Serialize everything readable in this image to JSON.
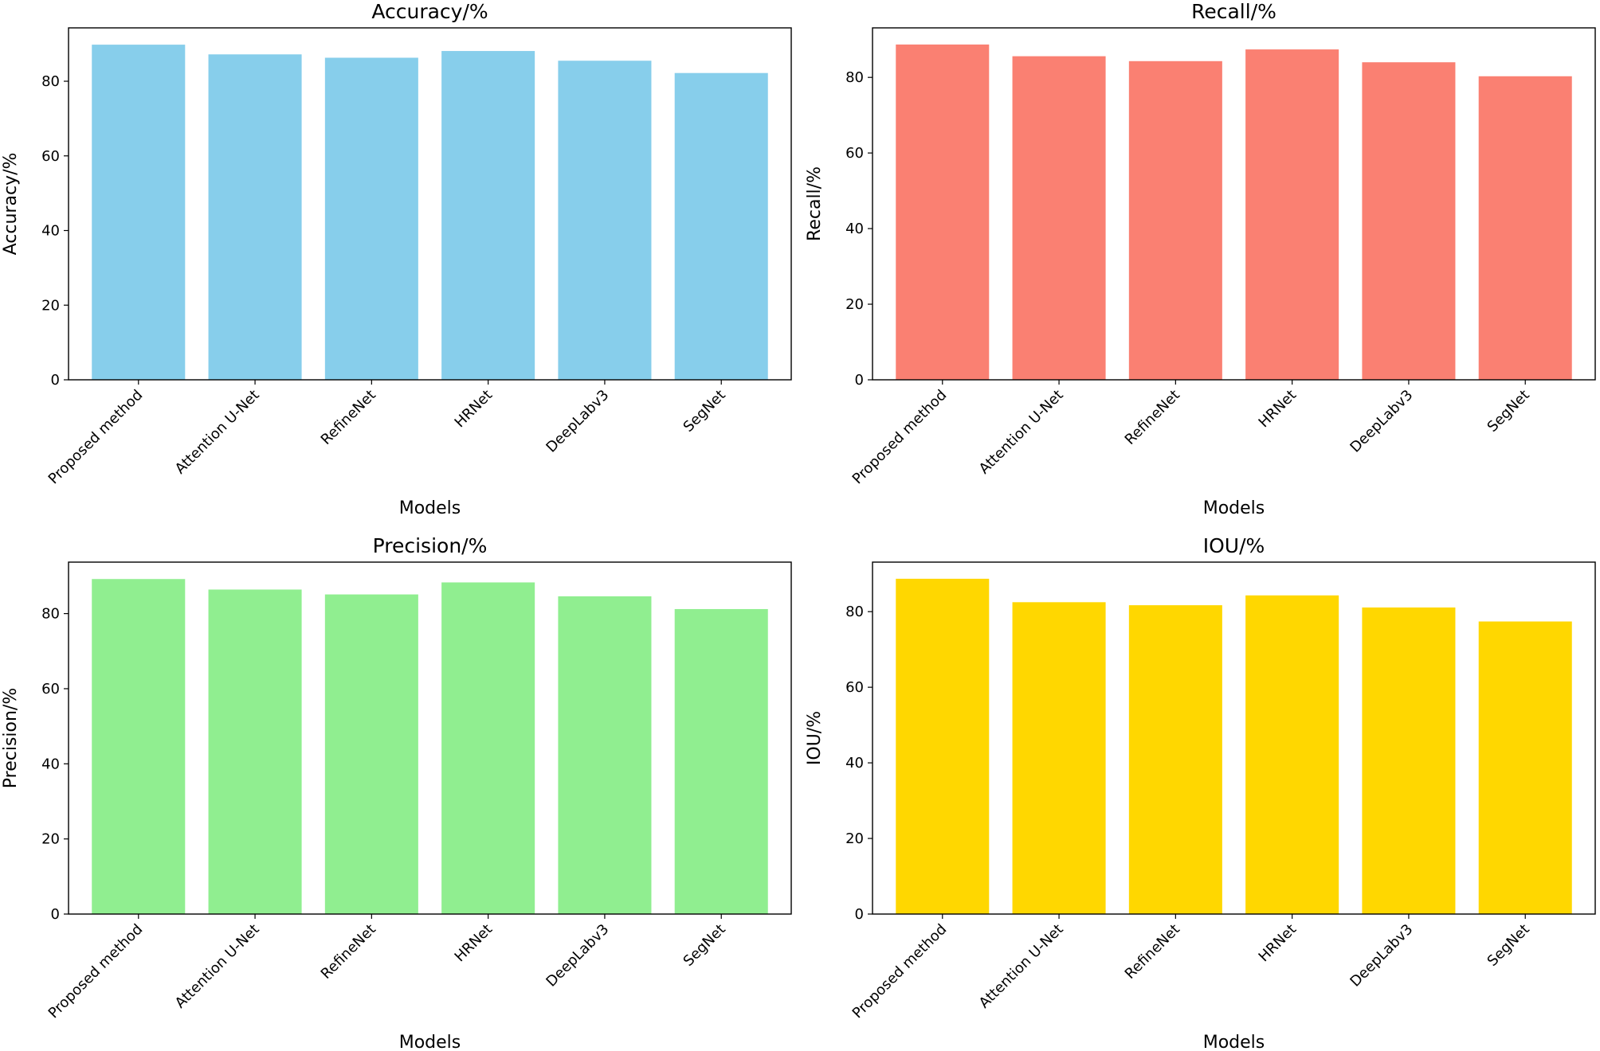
{
  "chart_data": [
    {
      "type": "bar",
      "title": "Accuracy/%",
      "xlabel": "Models",
      "ylabel": "Accuracy/%",
      "color": "#87CEEB",
      "categories": [
        "Proposed method",
        "Attention U-Net",
        "RefineNet",
        "HRNet",
        "DeepLabv3",
        "SegNet"
      ],
      "values": [
        89.8,
        87.2,
        86.3,
        88.1,
        85.5,
        82.2
      ],
      "ylim": [
        0,
        94.3
      ],
      "yticks": [
        0,
        20,
        40,
        60,
        80
      ]
    },
    {
      "type": "bar",
      "title": "Recall/%",
      "xlabel": "Models",
      "ylabel": "Recall/%",
      "color": "#FA8072",
      "categories": [
        "Proposed method",
        "Attention U-Net",
        "RefineNet",
        "HRNet",
        "DeepLabv3",
        "SegNet"
      ],
      "values": [
        88.7,
        85.6,
        84.3,
        87.4,
        84.0,
        80.3
      ],
      "ylim": [
        0,
        93.1
      ],
      "yticks": [
        0,
        20,
        40,
        60,
        80
      ]
    },
    {
      "type": "bar",
      "title": "Precision/%",
      "xlabel": "Models",
      "ylabel": "Precision/%",
      "color": "#90EE90",
      "categories": [
        "Proposed method",
        "Attention U-Net",
        "RefineNet",
        "HRNet",
        "DeepLabv3",
        "SegNet"
      ],
      "values": [
        89.2,
        86.4,
        85.1,
        88.3,
        84.6,
        81.2
      ],
      "ylim": [
        0,
        93.7
      ],
      "yticks": [
        0,
        20,
        40,
        60,
        80
      ]
    },
    {
      "type": "bar",
      "title": "IOU/%",
      "xlabel": "Models",
      "ylabel": "IOU/%",
      "color": "#FFD700",
      "categories": [
        "Proposed method",
        "Attention U-Net",
        "RefineNet",
        "HRNet",
        "DeepLabv3",
        "SegNet"
      ],
      "values": [
        88.7,
        82.5,
        81.7,
        84.3,
        81.1,
        77.4
      ],
      "ylim": [
        0,
        93.1
      ],
      "yticks": [
        0,
        20,
        40,
        60,
        80
      ]
    }
  ]
}
